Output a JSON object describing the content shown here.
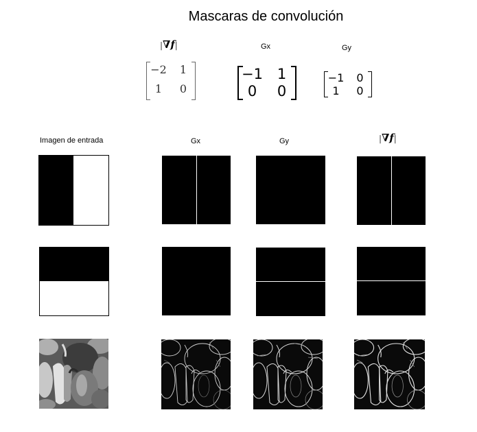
{
  "title": "Mascaras de convolución",
  "masks": {
    "grad_label": "∇f",
    "gx_label": "Gx",
    "gy_label": "Gy",
    "grad_matrix": [
      "−2",
      "1",
      "1",
      "0"
    ],
    "gx_matrix": [
      "−1",
      "1",
      "0",
      "0"
    ],
    "gy_matrix": [
      "−1",
      "0",
      "1",
      "0"
    ]
  },
  "columns": {
    "input": "Imagen de entrada",
    "gx": "Gx",
    "gy": "Gy",
    "grad": "∇f"
  },
  "rows": [
    {
      "name": "vertical-edge"
    },
    {
      "name": "horizontal-edge"
    },
    {
      "name": "peppers"
    }
  ]
}
